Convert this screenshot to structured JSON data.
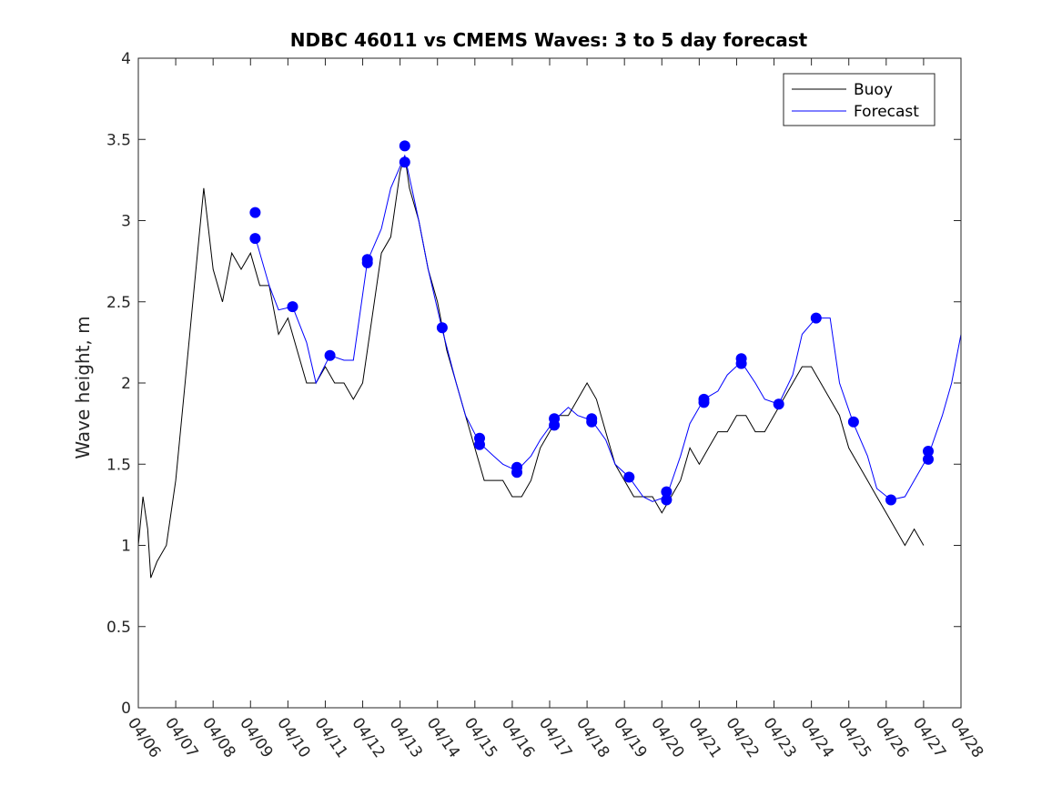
{
  "chart_data": {
    "type": "line",
    "title": "NDBC 46011 vs CMEMS Waves: 3 to 5 day forecast",
    "xlabel": "",
    "ylabel": "Wave height, m",
    "xlim": [
      "2019-04-06",
      "2019-04-28"
    ],
    "ylim": [
      0,
      4
    ],
    "x_tick_labels": [
      "04/06",
      "04/07",
      "04/08",
      "04/09",
      "04/10",
      "04/11",
      "04/12",
      "04/13",
      "04/14",
      "04/15",
      "04/16",
      "04/17",
      "04/18",
      "04/19",
      "04/20",
      "04/21",
      "04/22",
      "04/23",
      "04/24",
      "04/25",
      "04/26",
      "04/27",
      "04/28"
    ],
    "y_tick_labels": [
      "0",
      "0.5",
      "1",
      "1.5",
      "2",
      "2.5",
      "3",
      "3.5",
      "4"
    ],
    "legend_position": "top-right",
    "colors": {
      "buoy": "#000000",
      "forecast": "#0000ff"
    },
    "series": [
      {
        "name": "Buoy",
        "color": "#000000",
        "points": [
          [
            "04/06 00:00",
            1.0
          ],
          [
            "04/06 03:00",
            1.3
          ],
          [
            "04/06 06:00",
            1.1
          ],
          [
            "04/06 08:00",
            0.8
          ],
          [
            "04/06 12:00",
            0.9
          ],
          [
            "04/06 18:00",
            1.0
          ],
          [
            "04/07 00:00",
            1.4
          ],
          [
            "04/07 06:00",
            2.0
          ],
          [
            "04/07 12:00",
            2.6
          ],
          [
            "04/07 18:00",
            3.2
          ],
          [
            "04/08 00:00",
            2.7
          ],
          [
            "04/08 06:00",
            2.5
          ],
          [
            "04/08 12:00",
            2.8
          ],
          [
            "04/08 18:00",
            2.7
          ],
          [
            "04/09 00:00",
            2.8
          ],
          [
            "04/09 06:00",
            2.6
          ],
          [
            "04/09 12:00",
            2.6
          ],
          [
            "04/09 18:00",
            2.3
          ],
          [
            "04/10 00:00",
            2.4
          ],
          [
            "04/10 06:00",
            2.2
          ],
          [
            "04/10 12:00",
            2.0
          ],
          [
            "04/10 18:00",
            2.0
          ],
          [
            "04/11 00:00",
            2.1
          ],
          [
            "04/11 06:00",
            2.0
          ],
          [
            "04/11 12:00",
            2.0
          ],
          [
            "04/11 18:00",
            1.9
          ],
          [
            "04/12 00:00",
            2.0
          ],
          [
            "04/12 06:00",
            2.4
          ],
          [
            "04/12 12:00",
            2.8
          ],
          [
            "04/12 18:00",
            2.9
          ],
          [
            "04/13 00:00",
            3.3
          ],
          [
            "04/13 03:00",
            3.4
          ],
          [
            "04/13 06:00",
            3.2
          ],
          [
            "04/13 12:00",
            3.0
          ],
          [
            "04/13 18:00",
            2.7
          ],
          [
            "04/14 00:00",
            2.5
          ],
          [
            "04/14 06:00",
            2.2
          ],
          [
            "04/14 12:00",
            2.0
          ],
          [
            "04/14 18:00",
            1.8
          ],
          [
            "04/15 00:00",
            1.6
          ],
          [
            "04/15 06:00",
            1.4
          ],
          [
            "04/15 12:00",
            1.4
          ],
          [
            "04/15 18:00",
            1.4
          ],
          [
            "04/16 00:00",
            1.3
          ],
          [
            "04/16 06:00",
            1.3
          ],
          [
            "04/16 12:00",
            1.4
          ],
          [
            "04/16 18:00",
            1.6
          ],
          [
            "04/17 00:00",
            1.7
          ],
          [
            "04/17 06:00",
            1.8
          ],
          [
            "04/17 12:00",
            1.8
          ],
          [
            "04/17 18:00",
            1.9
          ],
          [
            "04/18 00:00",
            2.0
          ],
          [
            "04/18 06:00",
            1.9
          ],
          [
            "04/18 12:00",
            1.7
          ],
          [
            "04/18 18:00",
            1.5
          ],
          [
            "04/19 00:00",
            1.4
          ],
          [
            "04/19 06:00",
            1.3
          ],
          [
            "04/19 12:00",
            1.3
          ],
          [
            "04/19 18:00",
            1.3
          ],
          [
            "04/20 00:00",
            1.2
          ],
          [
            "04/20 06:00",
            1.3
          ],
          [
            "04/20 12:00",
            1.4
          ],
          [
            "04/20 18:00",
            1.6
          ],
          [
            "04/21 00:00",
            1.5
          ],
          [
            "04/21 06:00",
            1.6
          ],
          [
            "04/21 12:00",
            1.7
          ],
          [
            "04/21 18:00",
            1.7
          ],
          [
            "04/22 00:00",
            1.8
          ],
          [
            "04/22 06:00",
            1.8
          ],
          [
            "04/22 12:00",
            1.7
          ],
          [
            "04/22 18:00",
            1.7
          ],
          [
            "04/23 00:00",
            1.8
          ],
          [
            "04/23 06:00",
            1.9
          ],
          [
            "04/23 12:00",
            2.0
          ],
          [
            "04/23 18:00",
            2.1
          ],
          [
            "04/24 00:00",
            2.1
          ],
          [
            "04/24 06:00",
            2.0
          ],
          [
            "04/24 12:00",
            1.9
          ],
          [
            "04/24 18:00",
            1.8
          ],
          [
            "04/25 00:00",
            1.6
          ],
          [
            "04/25 06:00",
            1.5
          ],
          [
            "04/25 12:00",
            1.4
          ],
          [
            "04/25 18:00",
            1.3
          ],
          [
            "04/26 00:00",
            1.2
          ],
          [
            "04/26 06:00",
            1.1
          ],
          [
            "04/26 12:00",
            1.0
          ],
          [
            "04/26 18:00",
            1.1
          ],
          [
            "04/27 00:00",
            1.0
          ]
        ]
      },
      {
        "name": "Forecast",
        "color": "#0000ff",
        "points": [
          [
            "04/09 03:00",
            2.9
          ],
          [
            "04/09 12:00",
            2.6
          ],
          [
            "04/09 18:00",
            2.45
          ],
          [
            "04/10 03:00",
            2.47
          ],
          [
            "04/10 12:00",
            2.25
          ],
          [
            "04/10 18:00",
            2.0
          ],
          [
            "04/11 03:00",
            2.17
          ],
          [
            "04/11 12:00",
            2.14
          ],
          [
            "04/11 18:00",
            2.14
          ],
          [
            "04/12 03:00",
            2.75
          ],
          [
            "04/12 12:00",
            2.95
          ],
          [
            "04/12 18:00",
            3.2
          ],
          [
            "04/13 03:00",
            3.4
          ],
          [
            "04/13 12:00",
            3.0
          ],
          [
            "04/13 18:00",
            2.7
          ],
          [
            "04/14 03:00",
            2.33
          ],
          [
            "04/14 12:00",
            2.0
          ],
          [
            "04/14 18:00",
            1.8
          ],
          [
            "04/15 03:00",
            1.63
          ],
          [
            "04/15 12:00",
            1.55
          ],
          [
            "04/15 18:00",
            1.5
          ],
          [
            "04/16 03:00",
            1.46
          ],
          [
            "04/16 12:00",
            1.55
          ],
          [
            "04/16 18:00",
            1.65
          ],
          [
            "04/17 03:00",
            1.77
          ],
          [
            "04/17 12:00",
            1.85
          ],
          [
            "04/17 18:00",
            1.8
          ],
          [
            "04/18 03:00",
            1.77
          ],
          [
            "04/18 12:00",
            1.65
          ],
          [
            "04/18 18:00",
            1.5
          ],
          [
            "04/19 03:00",
            1.42
          ],
          [
            "04/19 12:00",
            1.3
          ],
          [
            "04/19 18:00",
            1.27
          ],
          [
            "04/20 03:00",
            1.3
          ],
          [
            "04/20 12:00",
            1.55
          ],
          [
            "04/20 18:00",
            1.75
          ],
          [
            "04/21 03:00",
            1.9
          ],
          [
            "04/21 12:00",
            1.95
          ],
          [
            "04/21 18:00",
            2.05
          ],
          [
            "04/22 03:00",
            2.13
          ],
          [
            "04/22 12:00",
            2.0
          ],
          [
            "04/22 18:00",
            1.9
          ],
          [
            "04/23 03:00",
            1.87
          ],
          [
            "04/23 12:00",
            2.05
          ],
          [
            "04/23 18:00",
            2.3
          ],
          [
            "04/24 03:00",
            2.4
          ],
          [
            "04/24 12:00",
            2.4
          ],
          [
            "04/24 18:00",
            2.0
          ],
          [
            "04/25 03:00",
            1.75
          ],
          [
            "04/25 12:00",
            1.55
          ],
          [
            "04/25 18:00",
            1.35
          ],
          [
            "04/26 03:00",
            1.28
          ],
          [
            "04/26 12:00",
            1.3
          ],
          [
            "04/26 18:00",
            1.4
          ],
          [
            "04/27 03:00",
            1.55
          ],
          [
            "04/27 12:00",
            1.8
          ],
          [
            "04/27 18:00",
            2.0
          ],
          [
            "04/28 00:00",
            2.3
          ]
        ]
      }
    ],
    "forecast_markers": [
      [
        "04/09 03:00",
        3.05
      ],
      [
        "04/09 03:00",
        2.89
      ],
      [
        "04/10 03:00",
        2.47
      ],
      [
        "04/11 03:00",
        2.17
      ],
      [
        "04/12 03:00",
        2.74
      ],
      [
        "04/12 03:00",
        2.76
      ],
      [
        "04/13 03:00",
        3.46
      ],
      [
        "04/13 03:00",
        3.36
      ],
      [
        "04/14 03:00",
        2.34
      ],
      [
        "04/15 03:00",
        1.66
      ],
      [
        "04/15 03:00",
        1.62
      ],
      [
        "04/16 03:00",
        1.48
      ],
      [
        "04/16 03:00",
        1.45
      ],
      [
        "04/17 03:00",
        1.78
      ],
      [
        "04/17 03:00",
        1.74
      ],
      [
        "04/18 03:00",
        1.78
      ],
      [
        "04/18 03:00",
        1.76
      ],
      [
        "04/19 03:00",
        1.42
      ],
      [
        "04/20 03:00",
        1.33
      ],
      [
        "04/20 03:00",
        1.28
      ],
      [
        "04/21 03:00",
        1.9
      ],
      [
        "04/21 03:00",
        1.88
      ],
      [
        "04/22 03:00",
        2.15
      ],
      [
        "04/22 03:00",
        2.12
      ],
      [
        "04/23 03:00",
        1.87
      ],
      [
        "04/24 03:00",
        2.4
      ],
      [
        "04/25 03:00",
        1.76
      ],
      [
        "04/26 03:00",
        1.28
      ],
      [
        "04/27 03:00",
        1.58
      ],
      [
        "04/27 03:00",
        1.53
      ]
    ]
  }
}
